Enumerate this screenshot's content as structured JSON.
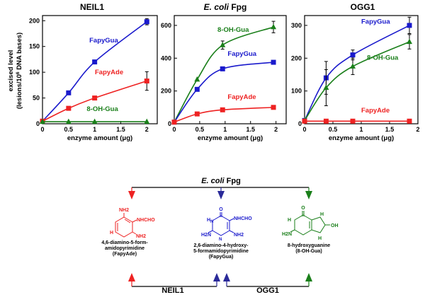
{
  "chart_data": [
    {
      "type": "line",
      "title": "NEIL1",
      "xlabel": "enzyme amount (μg)",
      "ylabel": "excised level",
      "ylabel_line2": "(lesions/10",
      "ylabel_sup": "6",
      "ylabel_line2_end": " DNA bases)",
      "xlim": [
        0,
        2.2
      ],
      "ylim": [
        0,
        210
      ],
      "xticks": [
        "0",
        "0.5",
        "1",
        "1.5",
        "2"
      ],
      "xtick_values": [
        0,
        0.5,
        1,
        1.5,
        2
      ],
      "yticks": [
        "0",
        "50",
        "100",
        "150",
        "200"
      ],
      "ytick_values": [
        0,
        50,
        100,
        150,
        200
      ],
      "series": [
        {
          "name": "FapyGua",
          "color": "#1a1acc",
          "marker": "square",
          "x": [
            0,
            0.5,
            1,
            2
          ],
          "y": [
            5,
            60,
            120,
            198
          ],
          "err": [
            0,
            0,
            0,
            6
          ]
        },
        {
          "name": "FapyAde",
          "color": "#ee2222",
          "marker": "square",
          "x": [
            0,
            0.5,
            1,
            2
          ],
          "y": [
            5,
            30,
            50,
            83
          ],
          "err": [
            0,
            0,
            0,
            18
          ]
        },
        {
          "name": "8-OH-Gua",
          "color": "#1a7f1a",
          "marker": "triangle",
          "x": [
            0,
            0.5,
            1,
            2
          ],
          "y": [
            4,
            4,
            4,
            4
          ],
          "err": [
            0,
            0,
            0,
            0
          ]
        }
      ]
    },
    {
      "type": "line",
      "title_italic": "E. coli",
      "title_rest": " Fpg",
      "xlabel": "enzyme amount (μg)",
      "xlim": [
        0,
        2.2
      ],
      "ylim": [
        0,
        660
      ],
      "xticks": [
        "0",
        "0.5",
        "1",
        "1.5",
        "2"
      ],
      "xtick_values": [
        0,
        0.5,
        1,
        1.5,
        2
      ],
      "yticks": [
        "0",
        "200",
        "400",
        "600"
      ],
      "ytick_values": [
        0,
        200,
        400,
        600
      ],
      "series": [
        {
          "name": "8-OH-Gua",
          "color": "#1a7f1a",
          "marker": "triangle",
          "x": [
            0,
            0.45,
            0.95,
            1.95
          ],
          "y": [
            10,
            270,
            480,
            590
          ],
          "err": [
            0,
            0,
            25,
            35
          ]
        },
        {
          "name": "FapyGua",
          "color": "#1a1acc",
          "marker": "square",
          "x": [
            0,
            0.45,
            0.95,
            1.95
          ],
          "y": [
            10,
            210,
            335,
            375
          ],
          "err": [
            0,
            0,
            0,
            0
          ]
        },
        {
          "name": "FapyAde",
          "color": "#ee2222",
          "marker": "square",
          "x": [
            0,
            0.45,
            0.95,
            1.95
          ],
          "y": [
            10,
            60,
            85,
            100
          ],
          "err": [
            0,
            0,
            0,
            0
          ]
        }
      ]
    },
    {
      "type": "line",
      "title": "OGG1",
      "xlabel": "enzyme amount (μg)",
      "xlim": [
        0,
        2.0
      ],
      "ylim": [
        0,
        330
      ],
      "xticks": [
        "0",
        "0.5",
        "1",
        "1.5",
        "2"
      ],
      "xtick_values": [
        0,
        0.5,
        1,
        1.5,
        2
      ],
      "yticks": [
        "0",
        "100",
        "200",
        "300"
      ],
      "ytick_values": [
        0,
        100,
        200,
        300
      ],
      "series": [
        {
          "name": "FapyGua",
          "color": "#1a1acc",
          "marker": "square",
          "x": [
            0,
            0.38,
            0.85,
            1.85
          ],
          "y": [
            10,
            140,
            210,
            300
          ],
          "err": [
            0,
            50,
            15,
            25
          ]
        },
        {
          "name": "8-OH-Gua",
          "color": "#1a7f1a",
          "marker": "triangle",
          "x": [
            0,
            0.38,
            0.85,
            1.85
          ],
          "y": [
            10,
            110,
            175,
            250
          ],
          "err": [
            0,
            55,
            25,
            22
          ]
        },
        {
          "name": "FapyAde",
          "color": "#ee2222",
          "marker": "square",
          "x": [
            0,
            0.38,
            0.85,
            1.85
          ],
          "y": [
            8,
            8,
            8,
            8
          ],
          "err": [
            0,
            0,
            0,
            0
          ]
        }
      ]
    }
  ],
  "diagram": {
    "top_italic": "E. coli",
    "top_rest": " Fpg",
    "enzymes": [
      "NEIL1",
      "OGG1"
    ],
    "compounds": [
      {
        "color": "#ee2222",
        "atoms": [
          "NH2",
          "NHCHO",
          "NH2",
          "H"
        ],
        "caption": [
          "4,6-diamino-5-form-",
          "amidopyrimidine",
          "(FapyAde)"
        ]
      },
      {
        "color": "#1a1acc",
        "atoms": [
          "O",
          "NHCHO",
          "NH2",
          "H2N",
          "H",
          "N",
          "N"
        ],
        "caption": [
          "2,6-diamino-4-hydroxy-",
          "5-formamidopyrimidine",
          "(FapyGua)"
        ]
      },
      {
        "color": "#1a7f1a",
        "atoms": [
          "O",
          "H",
          "H",
          "OH",
          "H2N",
          "H"
        ],
        "caption": [
          "8-hydroxyguanine",
          "(8-OH-Gua)"
        ]
      }
    ],
    "colors": {
      "arrow_red": "#ee2222",
      "arrow_blue": "#2a2a99",
      "arrow_green": "#1a7f1a",
      "line": "#000000"
    }
  }
}
